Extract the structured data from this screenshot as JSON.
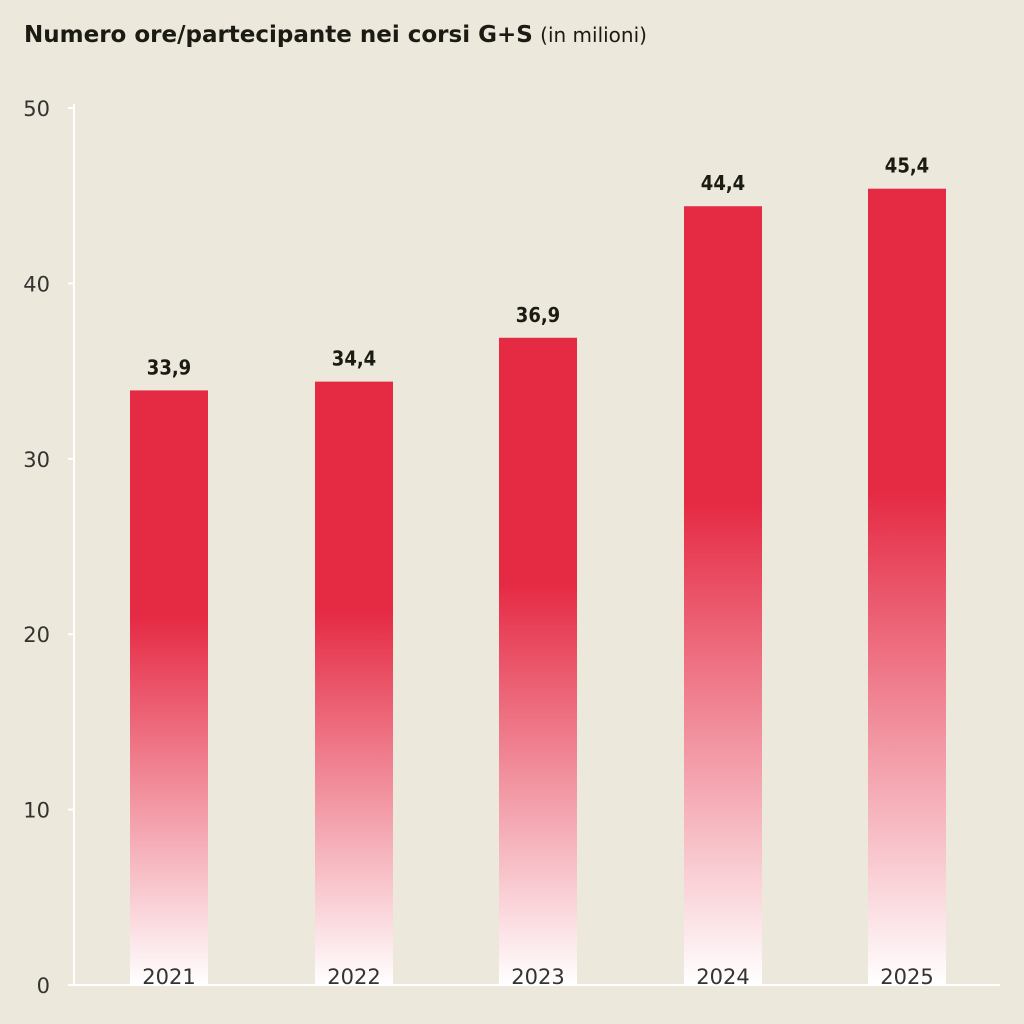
{
  "chart_data": {
    "type": "bar",
    "title": "Numero ore/partecipante nei corsi G+S",
    "subtitle": "(in milioni)",
    "categories": [
      "2021",
      "2022",
      "2023",
      "2024",
      "2025"
    ],
    "values": [
      33.9,
      34.4,
      36.9,
      44.4,
      45.4
    ],
    "value_labels": [
      "33,9",
      "34,4",
      "36,9",
      "44,4",
      "45,4"
    ],
    "ylim": [
      0,
      50
    ],
    "yticks": [
      0,
      10,
      20,
      30,
      40,
      50
    ],
    "xlabel": "",
    "ylabel": "",
    "grid": false,
    "bar_color_top": "#e52a44",
    "bar_color_bottom": "#ffffff",
    "axis_color": "#ffffff",
    "background": "#ece8dc"
  }
}
